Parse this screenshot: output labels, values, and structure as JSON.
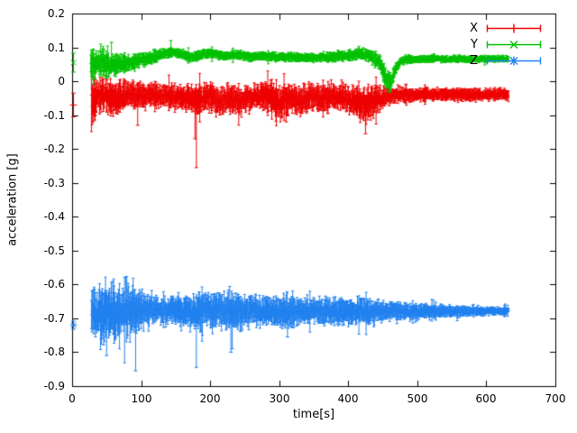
{
  "chart_data": {
    "type": "line",
    "title": "",
    "xlabel": "time[s]",
    "ylabel": "acceleration [g]",
    "xlim": [
      0,
      700
    ],
    "ylim": [
      -0.9,
      0.2
    ],
    "grid": false,
    "legend_position": "top-right",
    "axis_color": "#000000",
    "background_color": "#ffffff",
    "x_ticks": {
      "values": [
        0,
        100,
        200,
        300,
        400,
        500,
        600,
        700
      ],
      "labels": [
        "0",
        "100",
        "200",
        "300",
        "400",
        "500",
        "600",
        "700"
      ]
    },
    "y_ticks": {
      "values": [
        0.2,
        0.1,
        0,
        -0.1,
        -0.2,
        -0.3,
        -0.4,
        -0.5,
        -0.6,
        -0.7,
        -0.8,
        -0.9
      ],
      "labels": [
        "0.2",
        "0.1",
        "0",
        "-0.1",
        "-0.2",
        "-0.3",
        "-0.4",
        "-0.5",
        "-0.6",
        "-0.7",
        "-0.8",
        "-0.9"
      ]
    },
    "series": [
      {
        "name": "X",
        "style": "errorbars",
        "marker": "plus",
        "color": "#ee0000",
        "t_range": [
          28,
          632
        ],
        "start_point": {
          "t": 2,
          "y": -0.07,
          "err": 0.035
        },
        "mean": [
          [
            28,
            -0.06
          ],
          [
            40,
            -0.04
          ],
          [
            60,
            -0.05
          ],
          [
            80,
            -0.04
          ],
          [
            100,
            -0.045
          ],
          [
            120,
            -0.04
          ],
          [
            140,
            -0.045
          ],
          [
            160,
            -0.05
          ],
          [
            180,
            -0.055
          ],
          [
            200,
            -0.045
          ],
          [
            215,
            -0.06
          ],
          [
            230,
            -0.05
          ],
          [
            245,
            -0.06
          ],
          [
            260,
            -0.045
          ],
          [
            280,
            -0.04
          ],
          [
            300,
            -0.065
          ],
          [
            315,
            -0.05
          ],
          [
            330,
            -0.06
          ],
          [
            345,
            -0.045
          ],
          [
            360,
            -0.05
          ],
          [
            375,
            -0.045
          ],
          [
            390,
            -0.05
          ],
          [
            405,
            -0.055
          ],
          [
            420,
            -0.07
          ],
          [
            435,
            -0.06
          ],
          [
            450,
            -0.05
          ],
          [
            465,
            -0.04
          ],
          [
            500,
            -0.04
          ],
          [
            550,
            -0.038
          ],
          [
            632,
            -0.04
          ]
        ],
        "amp": [
          [
            28,
            0.065
          ],
          [
            40,
            0.05
          ],
          [
            60,
            0.045
          ],
          [
            80,
            0.04
          ],
          [
            100,
            0.035
          ],
          [
            140,
            0.03
          ],
          [
            180,
            0.04
          ],
          [
            220,
            0.04
          ],
          [
            260,
            0.035
          ],
          [
            300,
            0.045
          ],
          [
            340,
            0.04
          ],
          [
            380,
            0.035
          ],
          [
            410,
            0.045
          ],
          [
            435,
            0.05
          ],
          [
            455,
            0.025
          ],
          [
            470,
            0.02
          ],
          [
            520,
            0.018
          ],
          [
            632,
            0.016
          ]
        ],
        "spikes": [
          [
            95,
            -0.13
          ],
          [
            178,
            -0.17
          ],
          [
            180,
            -0.255
          ],
          [
            310,
            -0.12
          ],
          [
            425,
            -0.155
          ]
        ]
      },
      {
        "name": "Y",
        "style": "errorbars",
        "marker": "times",
        "color": "#00c000",
        "t_range": [
          27,
          632
        ],
        "start_point": {
          "t": 2,
          "y": 0.055,
          "err": 0.028
        },
        "mean": [
          [
            27,
            0.05
          ],
          [
            40,
            0.06
          ],
          [
            55,
            0.045
          ],
          [
            70,
            0.05
          ],
          [
            85,
            0.055
          ],
          [
            100,
            0.065
          ],
          [
            115,
            0.07
          ],
          [
            130,
            0.08
          ],
          [
            145,
            0.085
          ],
          [
            160,
            0.08
          ],
          [
            175,
            0.07
          ],
          [
            190,
            0.08
          ],
          [
            205,
            0.082
          ],
          [
            220,
            0.075
          ],
          [
            240,
            0.078
          ],
          [
            260,
            0.072
          ],
          [
            280,
            0.075
          ],
          [
            300,
            0.07
          ],
          [
            320,
            0.072
          ],
          [
            340,
            0.068
          ],
          [
            360,
            0.07
          ],
          [
            380,
            0.072
          ],
          [
            400,
            0.075
          ],
          [
            415,
            0.08
          ],
          [
            430,
            0.078
          ],
          [
            445,
            0.055
          ],
          [
            455,
            0.01
          ],
          [
            462,
            -0.005
          ],
          [
            468,
            0.03
          ],
          [
            475,
            0.06
          ],
          [
            490,
            0.065
          ],
          [
            520,
            0.066
          ],
          [
            560,
            0.065
          ],
          [
            632,
            0.066
          ]
        ],
        "amp": [
          [
            27,
            0.045
          ],
          [
            45,
            0.04
          ],
          [
            60,
            0.03
          ],
          [
            80,
            0.025
          ],
          [
            100,
            0.02
          ],
          [
            130,
            0.015
          ],
          [
            160,
            0.013
          ],
          [
            200,
            0.012
          ],
          [
            300,
            0.012
          ],
          [
            350,
            0.012
          ],
          [
            400,
            0.015
          ],
          [
            430,
            0.018
          ],
          [
            445,
            0.025
          ],
          [
            460,
            0.03
          ],
          [
            470,
            0.015
          ],
          [
            500,
            0.01
          ],
          [
            632,
            0.009
          ]
        ],
        "spikes": [
          [
            57,
            0.115
          ],
          [
            143,
            0.12
          ],
          [
            455,
            -0.02
          ]
        ]
      },
      {
        "name": "Z",
        "style": "errorbars",
        "marker": "asterisk",
        "color": "#2080ef",
        "t_range": [
          28,
          632
        ],
        "start_point": {
          "t": 2,
          "y": -0.72,
          "err": 0.012
        },
        "mean": [
          [
            28,
            -0.69
          ],
          [
            40,
            -0.685
          ],
          [
            60,
            -0.68
          ],
          [
            90,
            -0.675
          ],
          [
            120,
            -0.675
          ],
          [
            150,
            -0.678
          ],
          [
            180,
            -0.68
          ],
          [
            210,
            -0.675
          ],
          [
            240,
            -0.678
          ],
          [
            270,
            -0.678
          ],
          [
            300,
            -0.68
          ],
          [
            330,
            -0.68
          ],
          [
            360,
            -0.678
          ],
          [
            390,
            -0.68
          ],
          [
            420,
            -0.678
          ],
          [
            450,
            -0.68
          ],
          [
            480,
            -0.68
          ],
          [
            520,
            -0.679
          ],
          [
            560,
            -0.679
          ],
          [
            632,
            -0.678
          ]
        ],
        "amp": [
          [
            28,
            0.065
          ],
          [
            45,
            0.08
          ],
          [
            60,
            0.075
          ],
          [
            75,
            0.07
          ],
          [
            90,
            0.08
          ],
          [
            105,
            0.05
          ],
          [
            120,
            0.04
          ],
          [
            135,
            0.038
          ],
          [
            150,
            0.04
          ],
          [
            165,
            0.045
          ],
          [
            180,
            0.055
          ],
          [
            195,
            0.05
          ],
          [
            210,
            0.05
          ],
          [
            225,
            0.055
          ],
          [
            240,
            0.05
          ],
          [
            255,
            0.045
          ],
          [
            270,
            0.04
          ],
          [
            285,
            0.04
          ],
          [
            300,
            0.042
          ],
          [
            315,
            0.05
          ],
          [
            330,
            0.04
          ],
          [
            345,
            0.035
          ],
          [
            360,
            0.04
          ],
          [
            375,
            0.038
          ],
          [
            390,
            0.035
          ],
          [
            405,
            0.035
          ],
          [
            420,
            0.04
          ],
          [
            435,
            0.035
          ],
          [
            450,
            0.03
          ],
          [
            465,
            0.028
          ],
          [
            480,
            0.025
          ],
          [
            500,
            0.022
          ],
          [
            530,
            0.018
          ],
          [
            560,
            0.015
          ],
          [
            600,
            0.012
          ],
          [
            632,
            0.01
          ]
        ],
        "spikes": [
          [
            50,
            -0.81
          ],
          [
            92,
            -0.855
          ],
          [
            180,
            -0.845
          ],
          [
            230,
            -0.8
          ],
          [
            232,
            -0.79
          ],
          [
            312,
            -0.755
          ]
        ]
      }
    ]
  }
}
